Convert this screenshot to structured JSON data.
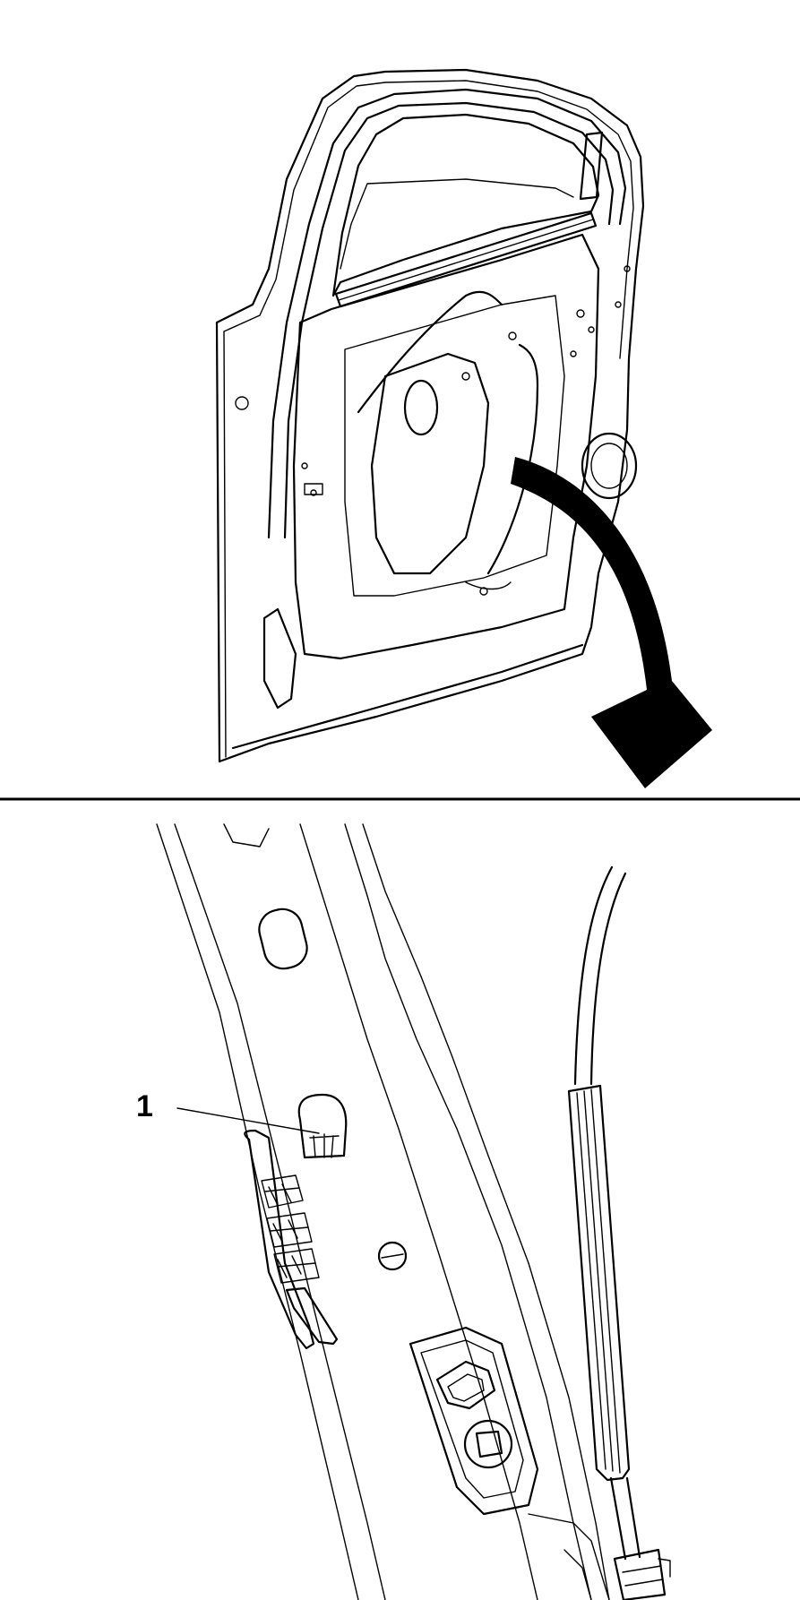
{
  "callouts": [
    {
      "label": "1"
    }
  ],
  "colors": {
    "line": "#000000",
    "background": "#ffffff"
  },
  "panels": {
    "top": "door-overview",
    "bottom": "door-detail"
  }
}
